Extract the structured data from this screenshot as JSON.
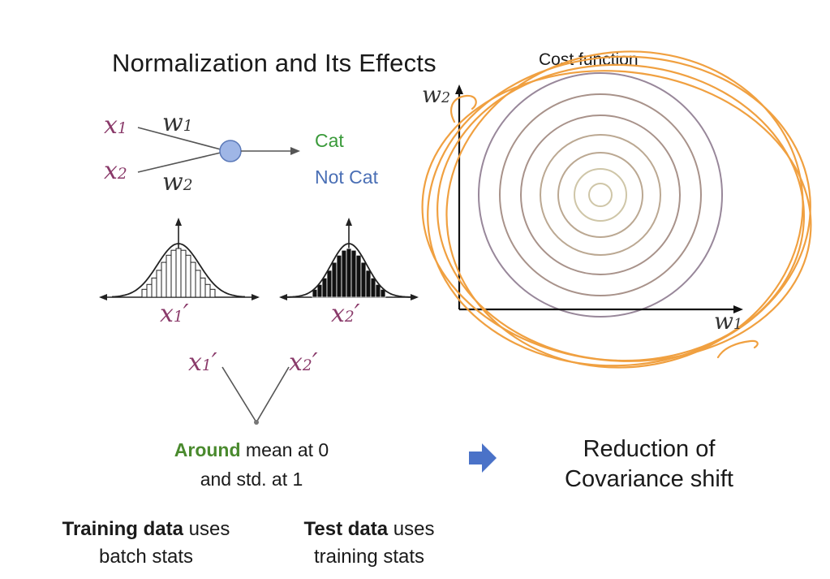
{
  "slide": {
    "title": "Normalization and Its Effects"
  },
  "network": {
    "inputs": [
      {
        "label": "x",
        "sub": "1",
        "weight": "w",
        "weight_sub": "1"
      },
      {
        "label": "x",
        "sub": "2",
        "weight": "w",
        "weight_sub": "2"
      }
    ],
    "outputs": [
      "Cat",
      "Not Cat"
    ],
    "colors": {
      "node_fill": "#9fb6e6",
      "cat": "#3a9a3a",
      "not_cat": "#4a6fb5",
      "variable": "#8a3a6a"
    }
  },
  "distributions": [
    {
      "label": "x",
      "sub": "1",
      "prime": "′",
      "style": "hollow bars"
    },
    {
      "label": "x",
      "sub": "2",
      "prime": "′",
      "style": "filled bars"
    }
  ],
  "merge": {
    "left": {
      "label": "x",
      "sub": "1",
      "prime": "′"
    },
    "right": {
      "label": "x",
      "sub": "2",
      "prime": "′"
    }
  },
  "mean_text": {
    "highlight": "Around",
    "rest": " mean at 0",
    "line2": "and std. at 1",
    "highlight_color": "#4a8a2e"
  },
  "arrow": {
    "icon": "right-arrow-icon",
    "color": "#4a72c8"
  },
  "result": {
    "line1": "Reduction of",
    "line2": "Covariance shift"
  },
  "training": {
    "bold": "Training data",
    "rest": " uses",
    "line2": "batch stats"
  },
  "test": {
    "bold": "Test data",
    "rest": " uses",
    "line2": "training stats"
  },
  "cost_plot": {
    "title": "Cost function",
    "x_axis": {
      "label": "w",
      "sub": "1"
    },
    "y_axis": {
      "label": "w",
      "sub": "2"
    },
    "contour_colors": [
      "#cfc6a8",
      "#bba892",
      "#a8928a",
      "#98879a"
    ],
    "annotation_color": "#f0a040"
  }
}
